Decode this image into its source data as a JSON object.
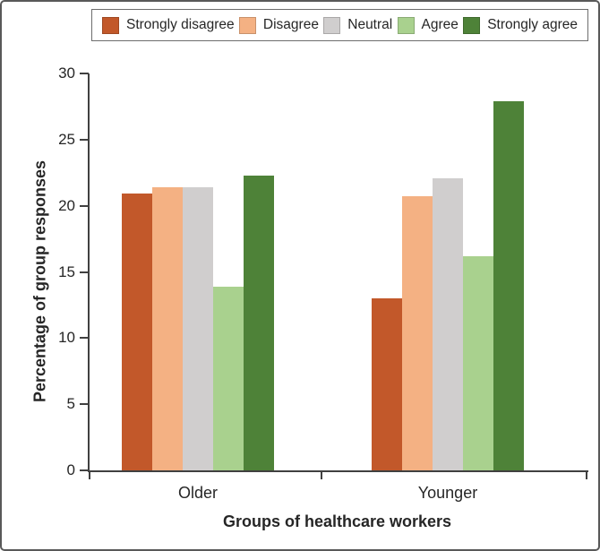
{
  "chart_data": {
    "type": "bar",
    "title": "",
    "xlabel": "Groups of healthcare workers",
    "ylabel": "Percentage of group responses",
    "categories": [
      "Older",
      "Younger"
    ],
    "series": [
      {
        "name": "Strongly disagree",
        "color": "#C2582A",
        "values": [
          20.9,
          13.0
        ]
      },
      {
        "name": "Disagree",
        "color": "#F4B183",
        "values": [
          21.4,
          20.7
        ]
      },
      {
        "name": "Neutral",
        "color": "#D0CECE",
        "values": [
          21.4,
          22.1
        ]
      },
      {
        "name": "Agree",
        "color": "#A9D18E",
        "values": [
          13.9,
          16.2
        ]
      },
      {
        "name": "Strongly agree",
        "color": "#4E8238",
        "values": [
          22.3,
          27.9
        ]
      }
    ],
    "ylim": [
      0,
      30
    ],
    "yticks": [
      0,
      5,
      10,
      15,
      20,
      25,
      30
    ],
    "grid": false,
    "legend_position": "top",
    "axis_color": "#404040",
    "text_color": "#262626"
  }
}
